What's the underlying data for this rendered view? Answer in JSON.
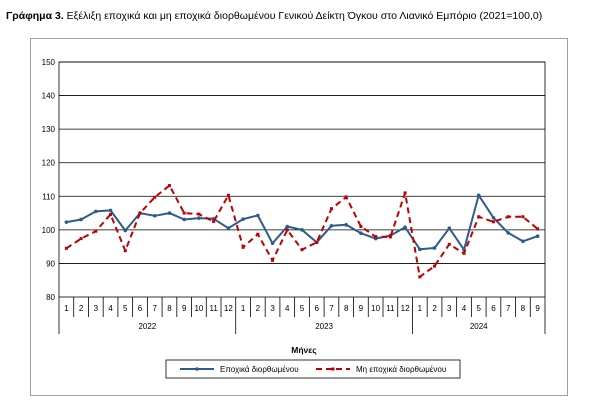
{
  "title_prefix": "Γράφημα 3.",
  "title_text": "Εξέλιξη εποχικά και μη εποχικά διορθωμένου Γενικού Δείκτη Όγκου στο Λιανικό Εμπόριο (2021=100,0)",
  "chart_data": {
    "type": "line",
    "title": "Εξέλιξη εποχικά και μη εποχικά διορθωμένου Γενικού Δείκτη Όγκου στο Λιανικό Εμπόριο (2021=100,0)",
    "xlabel": "Μήνες",
    "ylabel": "",
    "ylim": [
      80,
      150
    ],
    "yticks": [
      80,
      90,
      100,
      110,
      120,
      130,
      140,
      150
    ],
    "grid": true,
    "legend_position": "bottom",
    "categories": [
      "1",
      "2",
      "3",
      "4",
      "5",
      "6",
      "7",
      "8",
      "9",
      "10",
      "11",
      "12",
      "1",
      "2",
      "3",
      "4",
      "5",
      "6",
      "7",
      "8",
      "9",
      "10",
      "11",
      "12",
      "1",
      "2",
      "3",
      "4",
      "5",
      "6",
      "7",
      "8",
      "9"
    ],
    "year_groups": [
      {
        "label": "2022",
        "count": 12
      },
      {
        "label": "2023",
        "count": 12
      },
      {
        "label": "2024",
        "count": 9
      }
    ],
    "series": [
      {
        "name": "Εποχικά διορθωμένου",
        "color": "#2f5b8a",
        "style": "solid",
        "values": [
          102.3,
          103.1,
          105.5,
          105.8,
          99.8,
          105.0,
          104.2,
          105.0,
          103.1,
          103.5,
          103.3,
          100.5,
          103.2,
          104.3,
          96.0,
          101.0,
          100.0,
          96.3,
          101.2,
          101.5,
          99.0,
          97.4,
          98.3,
          100.8,
          94.2,
          94.6,
          100.5,
          94.1,
          110.3,
          103.6,
          99.1,
          96.6,
          98.1
        ]
      },
      {
        "name": "Μη εποχικά διορθωμένου",
        "color": "#c00000",
        "style": "dashed",
        "values": [
          94.5,
          97.4,
          99.6,
          104.6,
          93.8,
          105.0,
          109.7,
          113.2,
          105.0,
          104.7,
          102.5,
          110.3,
          94.8,
          98.7,
          90.9,
          100.0,
          94.1,
          96.3,
          106.3,
          109.8,
          101.0,
          98.0,
          97.9,
          111.0,
          86.0,
          89.2,
          95.7,
          93.0,
          103.9,
          102.4,
          103.9,
          103.9,
          100.3
        ]
      }
    ]
  }
}
